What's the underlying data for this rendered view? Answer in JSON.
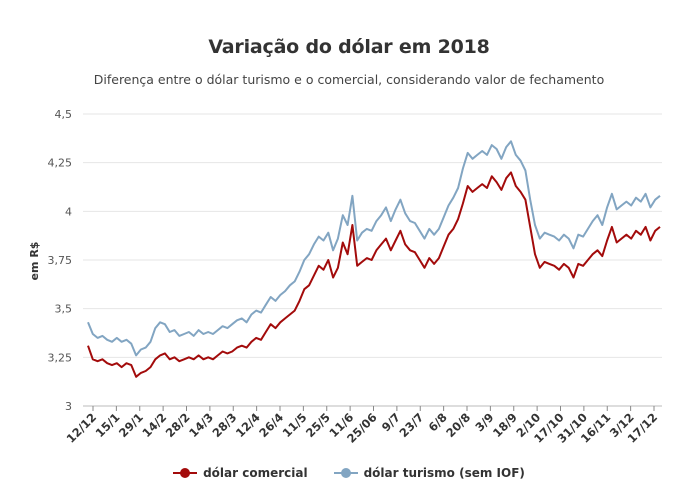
{
  "chart_data": {
    "type": "line",
    "title": "Variação do dólar em 2018",
    "subtitle": "Diferença entre o dólar turismo e o comercial, considerando valor de fechamento",
    "ylabel": "em R$",
    "xlabel": "",
    "ylim": [
      3,
      4.5
    ],
    "yticks": [
      3,
      3.25,
      3.5,
      3.75,
      4,
      4.25,
      4.5
    ],
    "ytick_labels": [
      "3",
      "3,25",
      "3,5",
      "3,75",
      "4",
      "4,25",
      "4,5"
    ],
    "grid": "horizontal",
    "legend_position": "bottom",
    "xtick_labels": [
      "12/12",
      "15/1",
      "29/1",
      "14/2",
      "28/2",
      "14/3",
      "28/3",
      "12/4",
      "26/4",
      "11/5",
      "25/5",
      "11/6",
      "25/06",
      "9/7",
      "23/7",
      "6/8",
      "20/8",
      "3/9",
      "18/9",
      "2/10",
      "17/10",
      "31/10",
      "16/11",
      "3/12",
      "17/12"
    ],
    "series": [
      {
        "name": "dólar comercial",
        "color": "#a30b0b",
        "values": [
          3.31,
          3.24,
          3.23,
          3.24,
          3.22,
          3.21,
          3.22,
          3.2,
          3.22,
          3.21,
          3.15,
          3.17,
          3.18,
          3.2,
          3.24,
          3.26,
          3.27,
          3.24,
          3.25,
          3.23,
          3.24,
          3.25,
          3.24,
          3.26,
          3.24,
          3.25,
          3.24,
          3.26,
          3.28,
          3.27,
          3.28,
          3.3,
          3.31,
          3.3,
          3.33,
          3.35,
          3.34,
          3.38,
          3.42,
          3.4,
          3.43,
          3.45,
          3.47,
          3.49,
          3.54,
          3.6,
          3.62,
          3.67,
          3.72,
          3.7,
          3.75,
          3.66,
          3.71,
          3.84,
          3.78,
          3.93,
          3.72,
          3.74,
          3.76,
          3.75,
          3.8,
          3.83,
          3.86,
          3.8,
          3.85,
          3.9,
          3.83,
          3.8,
          3.79,
          3.75,
          3.71,
          3.76,
          3.73,
          3.76,
          3.82,
          3.88,
          3.91,
          3.96,
          4.04,
          4.13,
          4.1,
          4.12,
          4.14,
          4.12,
          4.18,
          4.15,
          4.11,
          4.17,
          4.2,
          4.13,
          4.1,
          4.06,
          3.92,
          3.78,
          3.71,
          3.74,
          3.73,
          3.72,
          3.7,
          3.73,
          3.71,
          3.66,
          3.73,
          3.72,
          3.75,
          3.78,
          3.8,
          3.77,
          3.85,
          3.92,
          3.84,
          3.86,
          3.88,
          3.86,
          3.9,
          3.88,
          3.92,
          3.85,
          3.9,
          3.92
        ]
      },
      {
        "name": "dólar turismo (sem IOF)",
        "color": "#82a5c2",
        "values": [
          3.43,
          3.37,
          3.35,
          3.36,
          3.34,
          3.33,
          3.35,
          3.33,
          3.34,
          3.32,
          3.26,
          3.29,
          3.3,
          3.33,
          3.4,
          3.43,
          3.42,
          3.38,
          3.39,
          3.36,
          3.37,
          3.38,
          3.36,
          3.39,
          3.37,
          3.38,
          3.37,
          3.39,
          3.41,
          3.4,
          3.42,
          3.44,
          3.45,
          3.43,
          3.47,
          3.49,
          3.48,
          3.52,
          3.56,
          3.54,
          3.57,
          3.59,
          3.62,
          3.64,
          3.69,
          3.75,
          3.78,
          3.83,
          3.87,
          3.85,
          3.89,
          3.8,
          3.86,
          3.98,
          3.93,
          4.08,
          3.85,
          3.89,
          3.91,
          3.9,
          3.95,
          3.98,
          4.02,
          3.95,
          4.01,
          4.06,
          3.99,
          3.95,
          3.94,
          3.9,
          3.86,
          3.91,
          3.88,
          3.91,
          3.97,
          4.03,
          4.07,
          4.12,
          4.22,
          4.3,
          4.27,
          4.29,
          4.31,
          4.29,
          4.34,
          4.32,
          4.27,
          4.33,
          4.36,
          4.29,
          4.26,
          4.21,
          4.06,
          3.93,
          3.86,
          3.89,
          3.88,
          3.87,
          3.85,
          3.88,
          3.86,
          3.81,
          3.88,
          3.87,
          3.91,
          3.95,
          3.98,
          3.93,
          4.02,
          4.09,
          4.01,
          4.03,
          4.05,
          4.03,
          4.07,
          4.05,
          4.09,
          4.02,
          4.06,
          4.08
        ]
      }
    ]
  }
}
